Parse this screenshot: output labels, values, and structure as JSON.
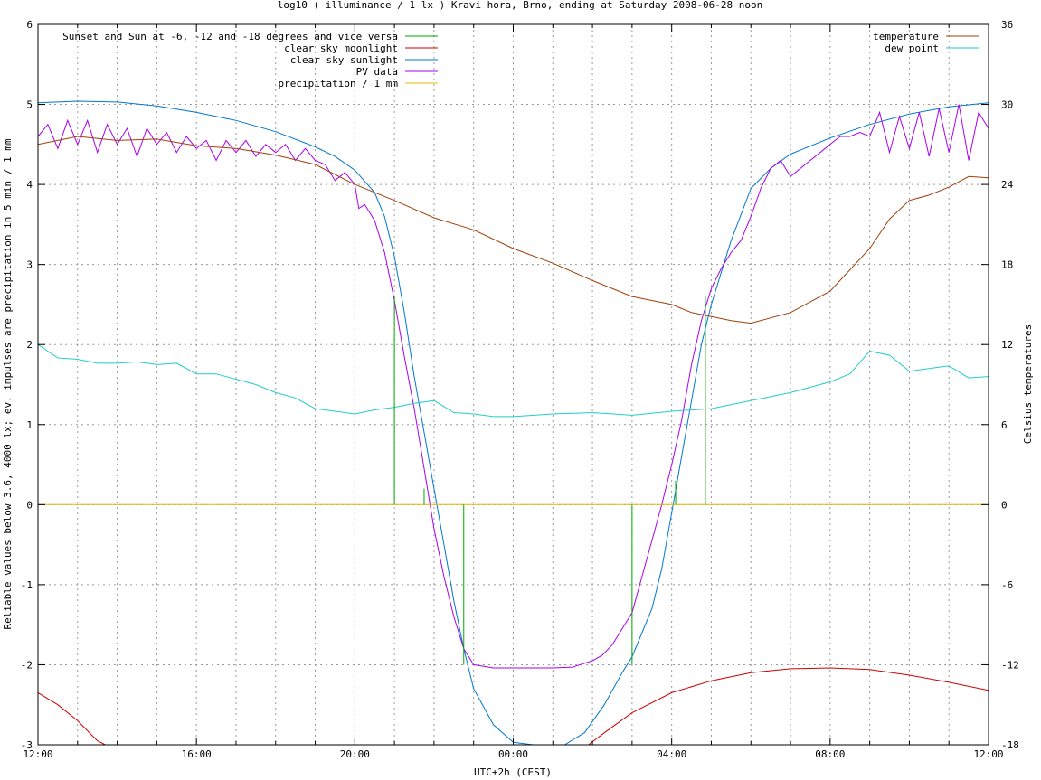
{
  "chart_data": {
    "type": "line",
    "title": "log10 ( illuminance / 1 lx ) Kravi hora, Brno, ending at Saturday 2008-06-28 noon",
    "xlabel": "UTC+2h (CEST)",
    "ylabel": "Reliable values below 3.6, 4000 lx; ev. impulses are precipitation in 5 min / 1 mm",
    "y2label": "Celsius temperatures",
    "x_unit": "hours since 12:00 (local)",
    "xlim": [
      0,
      24
    ],
    "ylim": [
      -3,
      6
    ],
    "y2lim": [
      -18,
      36
    ],
    "x_ticks": [
      {
        "x": 0,
        "label": "12:00"
      },
      {
        "x": 4,
        "label": "16:00"
      },
      {
        "x": 8,
        "label": "20:00"
      },
      {
        "x": 12,
        "label": "00:00"
      },
      {
        "x": 16,
        "label": "04:00"
      },
      {
        "x": 20,
        "label": "08:00"
      },
      {
        "x": 24,
        "label": "12:00"
      }
    ],
    "y_ticks": [
      -3,
      -2,
      -1,
      0,
      1,
      2,
      3,
      4,
      5,
      6
    ],
    "y2_ticks": [
      -18,
      -12,
      -6,
      0,
      6,
      12,
      18,
      24,
      30,
      36
    ],
    "grid": true,
    "legend_left": [
      {
        "name": "Sunset and Sun at -6, -12 and -18 degrees and vice versa",
        "color": "#00aa00"
      },
      {
        "name": "clear sky moonlight",
        "color": "#cc0000"
      },
      {
        "name": "clear sky sunlight",
        "color": "#0077cc"
      },
      {
        "name": "PV data",
        "color": "#aa00ee"
      },
      {
        "name": "precipitation / 1 mm",
        "color": "#e6b800"
      }
    ],
    "legend_right": [
      {
        "name": "temperature",
        "color": "#a0400a"
      },
      {
        "name": "dew point",
        "color": "#22cccc"
      }
    ],
    "sun_events": [
      {
        "x": 9.0,
        "y_top": 2.6,
        "y_bottom": 0
      },
      {
        "x": 9.75,
        "y_top": 0.2,
        "y_bottom": 0
      },
      {
        "x": 10.75,
        "y_top": 0,
        "y_bottom": -2.0
      },
      {
        "x": 15.0,
        "y_top": 0,
        "y_bottom": -2.0
      },
      {
        "x": 16.1,
        "y_top": 0.3,
        "y_bottom": 0
      },
      {
        "x": 16.85,
        "y_top": 2.6,
        "y_bottom": 0
      }
    ],
    "series": [
      {
        "name": "clear sky sunlight",
        "axis": "y1",
        "color": "#0077cc",
        "points": [
          [
            0,
            5.02
          ],
          [
            1,
            5.04
          ],
          [
            2,
            5.03
          ],
          [
            3,
            4.98
          ],
          [
            4,
            4.9
          ],
          [
            5,
            4.8
          ],
          [
            6,
            4.66
          ],
          [
            7,
            4.47
          ],
          [
            7.5,
            4.35
          ],
          [
            8,
            4.18
          ],
          [
            8.5,
            3.9
          ],
          [
            8.75,
            3.6
          ],
          [
            9,
            3.1
          ],
          [
            9.25,
            2.4
          ],
          [
            9.5,
            1.6
          ],
          [
            9.75,
            0.9
          ],
          [
            10,
            0.2
          ],
          [
            10.25,
            -0.5
          ],
          [
            10.5,
            -1.2
          ],
          [
            10.75,
            -1.8
          ],
          [
            11,
            -2.3
          ],
          [
            11.5,
            -2.75
          ],
          [
            12,
            -2.97
          ],
          [
            12.5,
            -3.05
          ],
          [
            13.3,
            -3.05
          ],
          [
            13.8,
            -2.85
          ],
          [
            14.3,
            -2.5
          ],
          [
            14.75,
            -2.1
          ],
          [
            15,
            -1.9
          ],
          [
            15.5,
            -1.3
          ],
          [
            15.75,
            -0.8
          ],
          [
            16,
            -0.1
          ],
          [
            16.25,
            0.6
          ],
          [
            16.5,
            1.3
          ],
          [
            16.75,
            2.0
          ],
          [
            17,
            2.5
          ],
          [
            17.5,
            3.3
          ],
          [
            18,
            3.95
          ],
          [
            18.5,
            4.2
          ],
          [
            19,
            4.38
          ],
          [
            20,
            4.58
          ],
          [
            21,
            4.75
          ],
          [
            22,
            4.88
          ],
          [
            23,
            4.97
          ],
          [
            24,
            5.02
          ]
        ]
      },
      {
        "name": "clear sky moonlight",
        "axis": "y1",
        "color": "#cc0000",
        "points": [
          [
            0,
            -2.35
          ],
          [
            0.5,
            -2.5
          ],
          [
            1,
            -2.7
          ],
          [
            1.5,
            -2.95
          ],
          [
            1.7,
            -3.05
          ],
          [
            13.9,
            -3.05
          ],
          [
            14.3,
            -2.85
          ],
          [
            15,
            -2.6
          ],
          [
            16,
            -2.35
          ],
          [
            17,
            -2.2
          ],
          [
            18,
            -2.1
          ],
          [
            19,
            -2.05
          ],
          [
            20,
            -2.04
          ],
          [
            21,
            -2.06
          ],
          [
            22,
            -2.13
          ],
          [
            23,
            -2.22
          ],
          [
            24,
            -2.32
          ]
        ]
      },
      {
        "name": "PV data",
        "axis": "y1",
        "color": "#aa00ee",
        "points": [
          [
            0,
            4.6
          ],
          [
            0.25,
            4.75
          ],
          [
            0.5,
            4.45
          ],
          [
            0.75,
            4.8
          ],
          [
            1,
            4.5
          ],
          [
            1.25,
            4.8
          ],
          [
            1.5,
            4.4
          ],
          [
            1.75,
            4.75
          ],
          [
            2,
            4.5
          ],
          [
            2.25,
            4.7
          ],
          [
            2.5,
            4.35
          ],
          [
            2.75,
            4.7
          ],
          [
            3,
            4.5
          ],
          [
            3.25,
            4.65
          ],
          [
            3.5,
            4.4
          ],
          [
            3.75,
            4.6
          ],
          [
            4,
            4.45
          ],
          [
            4.25,
            4.55
          ],
          [
            4.5,
            4.3
          ],
          [
            4.75,
            4.55
          ],
          [
            5,
            4.4
          ],
          [
            5.25,
            4.55
          ],
          [
            5.5,
            4.35
          ],
          [
            5.75,
            4.5
          ],
          [
            6,
            4.4
          ],
          [
            6.25,
            4.5
          ],
          [
            6.5,
            4.3
          ],
          [
            6.75,
            4.45
          ],
          [
            7,
            4.3
          ],
          [
            7.25,
            4.25
          ],
          [
            7.5,
            4.05
          ],
          [
            7.75,
            4.15
          ],
          [
            8,
            4.0
          ],
          [
            8.1,
            3.7
          ],
          [
            8.25,
            3.75
          ],
          [
            8.5,
            3.55
          ],
          [
            8.75,
            3.15
          ],
          [
            9,
            2.55
          ],
          [
            9.25,
            1.85
          ],
          [
            9.5,
            1.2
          ],
          [
            9.75,
            0.45
          ],
          [
            10,
            -0.3
          ],
          [
            10.25,
            -0.9
          ],
          [
            10.5,
            -1.4
          ],
          [
            10.75,
            -1.8
          ],
          [
            11,
            -2.0
          ],
          [
            11.5,
            -2.04
          ],
          [
            12,
            -2.04
          ],
          [
            12.5,
            -2.04
          ],
          [
            13,
            -2.04
          ],
          [
            13.5,
            -2.03
          ],
          [
            14,
            -1.95
          ],
          [
            14.25,
            -1.88
          ],
          [
            14.5,
            -1.75
          ],
          [
            14.75,
            -1.55
          ],
          [
            15,
            -1.35
          ],
          [
            15.25,
            -0.9
          ],
          [
            15.5,
            -0.45
          ],
          [
            15.75,
            0.0
          ],
          [
            16,
            0.5
          ],
          [
            16.25,
            1.05
          ],
          [
            16.5,
            1.75
          ],
          [
            16.75,
            2.3
          ],
          [
            17,
            2.7
          ],
          [
            17.25,
            2.95
          ],
          [
            17.5,
            3.15
          ],
          [
            17.75,
            3.3
          ],
          [
            18,
            3.6
          ],
          [
            18.25,
            3.95
          ],
          [
            18.5,
            4.2
          ],
          [
            18.75,
            4.3
          ],
          [
            19,
            4.1
          ],
          [
            19.25,
            4.2
          ],
          [
            19.5,
            4.3
          ],
          [
            19.75,
            4.4
          ],
          [
            20,
            4.5
          ],
          [
            20.25,
            4.6
          ],
          [
            20.5,
            4.6
          ],
          [
            20.75,
            4.65
          ],
          [
            21,
            4.6
          ],
          [
            21.25,
            4.9
          ],
          [
            21.5,
            4.4
          ],
          [
            21.75,
            4.85
          ],
          [
            22,
            4.45
          ],
          [
            22.25,
            4.9
          ],
          [
            22.5,
            4.35
          ],
          [
            22.75,
            4.95
          ],
          [
            23,
            4.4
          ],
          [
            23.25,
            5.0
          ],
          [
            23.5,
            4.3
          ],
          [
            23.75,
            4.9
          ],
          [
            24,
            4.7
          ]
        ]
      },
      {
        "name": "temperature",
        "axis": "y2",
        "color": "#a0400a",
        "points": [
          [
            0,
            27.0
          ],
          [
            1,
            27.6
          ],
          [
            2,
            27.3
          ],
          [
            3,
            27.4
          ],
          [
            4,
            26.9
          ],
          [
            5,
            26.7
          ],
          [
            6,
            26.2
          ],
          [
            7,
            25.5
          ],
          [
            8,
            24.0
          ],
          [
            9,
            22.8
          ],
          [
            10,
            21.5
          ],
          [
            11,
            20.6
          ],
          [
            12,
            19.2
          ],
          [
            13,
            18.1
          ],
          [
            14,
            16.8
          ],
          [
            15,
            15.6
          ],
          [
            16,
            15.0
          ],
          [
            16.5,
            14.4
          ],
          [
            17,
            14.1
          ],
          [
            17.5,
            13.8
          ],
          [
            18,
            13.6
          ],
          [
            19,
            14.4
          ],
          [
            20,
            16.0
          ],
          [
            21,
            19.2
          ],
          [
            21.5,
            21.4
          ],
          [
            22,
            22.8
          ],
          [
            22.5,
            23.2
          ],
          [
            23,
            23.8
          ],
          [
            23.5,
            24.6
          ],
          [
            24,
            24.5
          ]
        ]
      },
      {
        "name": "dew point",
        "axis": "y2",
        "color": "#22cccc",
        "points": [
          [
            0,
            12.0
          ],
          [
            0.5,
            11.0
          ],
          [
            1,
            10.9
          ],
          [
            1.5,
            10.6
          ],
          [
            2,
            10.6
          ],
          [
            2.5,
            10.7
          ],
          [
            3,
            10.5
          ],
          [
            3.5,
            10.6
          ],
          [
            4,
            9.8
          ],
          [
            4.5,
            9.8
          ],
          [
            5,
            9.4
          ],
          [
            5.5,
            9.0
          ],
          [
            6,
            8.4
          ],
          [
            6.5,
            8.0
          ],
          [
            7,
            7.2
          ],
          [
            7.5,
            7.0
          ],
          [
            8,
            6.8
          ],
          [
            8.5,
            7.1
          ],
          [
            9,
            7.3
          ],
          [
            9.5,
            7.6
          ],
          [
            10,
            7.8
          ],
          [
            10.5,
            6.9
          ],
          [
            11,
            6.8
          ],
          [
            11.5,
            6.6
          ],
          [
            12,
            6.6
          ],
          [
            13,
            6.8
          ],
          [
            14,
            6.9
          ],
          [
            15,
            6.7
          ],
          [
            16,
            7.0
          ],
          [
            17,
            7.2
          ],
          [
            18,
            7.8
          ],
          [
            19,
            8.4
          ],
          [
            20,
            9.2
          ],
          [
            20.5,
            9.8
          ],
          [
            21,
            11.5
          ],
          [
            21.5,
            11.2
          ],
          [
            22,
            10.0
          ],
          [
            23,
            10.4
          ],
          [
            23.5,
            9.5
          ],
          [
            24,
            9.6
          ]
        ]
      },
      {
        "name": "precipitation / 1 mm",
        "axis": "y1",
        "color": "#e6b800",
        "points": [
          [
            0,
            0
          ],
          [
            24,
            0
          ]
        ]
      }
    ]
  }
}
